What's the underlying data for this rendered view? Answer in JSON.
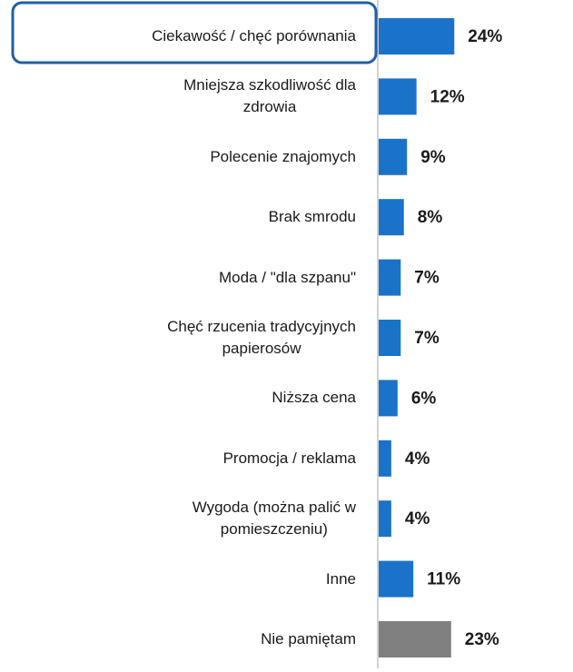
{
  "chart_data": {
    "type": "barh",
    "categories": [
      "Ciekawość /  chęć porównania",
      "Mniejsza szkodliwość dla\nzdrowia",
      "Polecenie znajomych",
      "Brak smrodu",
      "Moda / \"dla szpanu\"",
      "Chęć rzucenia tradycyjnych\npapierosów",
      "Niższa cena",
      "Promocja / reklama",
      "Wygoda (można palić w\npomieszczeniu)",
      "Inne",
      "Nie pamiętam"
    ],
    "values": [
      24,
      12,
      9,
      8,
      7,
      7,
      6,
      4,
      4,
      11,
      23
    ],
    "value_labels": [
      "24%",
      "12%",
      "9%",
      "8%",
      "7%",
      "7%",
      "6%",
      "4%",
      "4%",
      "11%",
      "23%"
    ],
    "colors": [
      "#1a73c8",
      "#1a73c8",
      "#1a73c8",
      "#1a73c8",
      "#1a73c8",
      "#1a73c8",
      "#1a73c8",
      "#1a73c8",
      "#1a73c8",
      "#1a73c8",
      "#808080"
    ]
  }
}
